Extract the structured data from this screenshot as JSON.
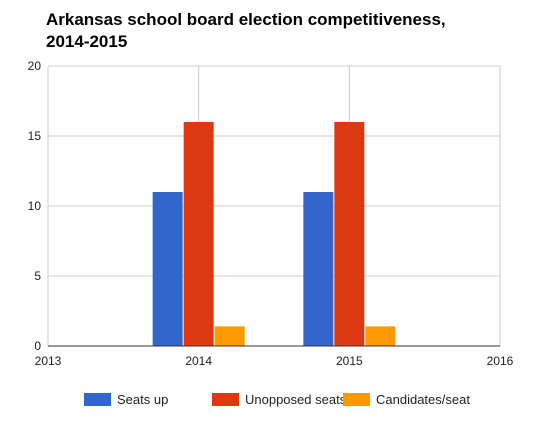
{
  "colors": {
    "seats_up": "#3366cc",
    "unopposed": "#dc3912",
    "candidates": "#ff9900",
    "gridline": "#cccccc",
    "axis": "#333333"
  },
  "chart_data": {
    "type": "bar",
    "title_lines": [
      "Arkansas school board election competitiveness,",
      "2014-2015"
    ],
    "xlabel": "",
    "ylabel": "",
    "x_ticks": [
      "2013",
      "2014",
      "2015",
      "2016"
    ],
    "y_ticks": [
      "0",
      "5",
      "10",
      "15",
      "20"
    ],
    "xlim": [
      2013,
      2016
    ],
    "ylim": [
      0,
      20
    ],
    "grid": true,
    "legend_position": "bottom",
    "categories": [
      2014,
      2015
    ],
    "series": [
      {
        "name": "Seats up",
        "values": [
          11,
          11
        ],
        "color": "#3366cc"
      },
      {
        "name": "Unopposed seats",
        "values": [
          16,
          16
        ],
        "color": "#dc3912"
      },
      {
        "name": "Candidates/seat",
        "values": [
          1.4,
          1.4
        ],
        "color": "#ff9900"
      }
    ]
  }
}
